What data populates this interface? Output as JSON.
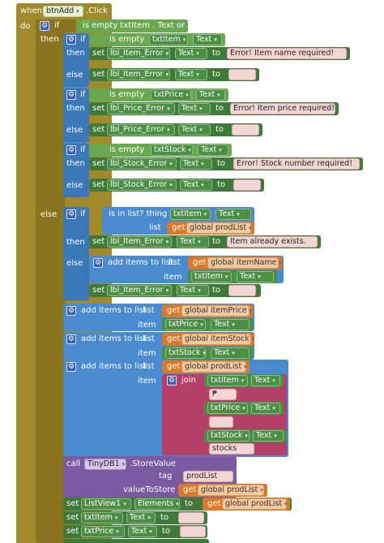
{
  "event": {
    "when": "when",
    "component": "btnAdd",
    "event": ".Click",
    "do": "do"
  },
  "kw": {
    "if": "if",
    "then": "then",
    "else": "else",
    "set": "set",
    "to": "to",
    "get": "get",
    "call": "call",
    "item": "item",
    "list": "list",
    "join": "join",
    "tag": "tag",
    "valueToStore": "valueToStore"
  },
  "outer_if": {
    "cond": "is empty txtItem . Text or ..."
  },
  "check1": {
    "op": "is empty",
    "comp": "txtItem",
    "prop": "Text",
    "then_lbl": "lbl_Item_Error",
    "then_prop": "Text",
    "then_msg": "Error! Item name required!",
    "else_lbl": "lbl_Item_Error",
    "else_prop": "Text",
    "else_msg": " "
  },
  "check2": {
    "op": "is empty",
    "comp": "txtPrice",
    "prop": "Text",
    "then_lbl": "lbl_Price_Error",
    "then_prop": "Text",
    "then_msg": "Error! Item price required!",
    "else_lbl": "lbl_Price_Error",
    "else_prop": "Text",
    "else_msg": " "
  },
  "check3": {
    "op": "is empty",
    "comp": "txtStock",
    "prop": "Text",
    "then_lbl": "lbl_Stock_Error",
    "then_prop": "Text",
    "then_msg": "Error! Stock number required!",
    "else_lbl": "lbl_Stock_Error",
    "else_prop": "Text",
    "else_msg": " "
  },
  "inlist": {
    "op": "is in list? thing",
    "comp": "txtItem",
    "prop": "Text",
    "list_var": "global prodList",
    "then_lbl": "lbl_Item_Error",
    "then_prop": "Text",
    "then_msg": "Item already exists.",
    "add_label": "add items to list",
    "add_list": "global itemName",
    "add_comp": "txtItem",
    "add_prop": "Text",
    "set_lbl": "lbl_Item_Error",
    "set_prop": "Text",
    "set_msg": " "
  },
  "add_price": {
    "label": "add items to list",
    "list": "global itemPrice",
    "comp": "txtPrice",
    "prop": "Text"
  },
  "add_stock": {
    "label": "add items to list",
    "list": "global itemStock",
    "comp": "txtStock",
    "prop": "Text"
  },
  "add_prod": {
    "label": "add items to list",
    "list": "global prodList",
    "join_items": [
      {
        "comp": "txtItem",
        "prop": "Text"
      },
      {
        "text": " ₱ "
      },
      {
        "comp": "txtPrice",
        "prop": "Text"
      },
      {
        "text": "  "
      },
      {
        "comp": "txtStock",
        "prop": "Text"
      },
      {
        "text": " stocks "
      }
    ]
  },
  "store": {
    "comp": "TinyDB1",
    "method": ".StoreValue",
    "tag_val": "prodList",
    "value": "global prodList"
  },
  "listview": {
    "comp": "ListView1",
    "prop": "Elements",
    "value": "global prodList"
  },
  "clear1": {
    "comp": "txtItem",
    "prop": "Text",
    "val": " "
  },
  "clear2": {
    "comp": "txtPrice",
    "prop": "Text",
    "val": " "
  }
}
